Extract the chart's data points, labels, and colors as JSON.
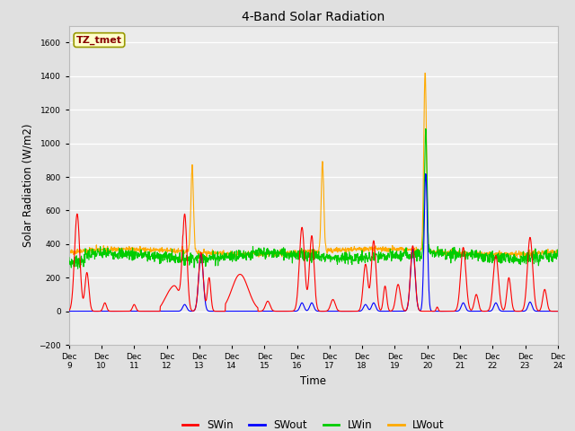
{
  "title": "4-Band Solar Radiation",
  "xlabel": "Time",
  "ylabel": "Solar Radiation (W/m2)",
  "ylim": [
    -200,
    1700
  ],
  "yticks": [
    -200,
    0,
    200,
    400,
    600,
    800,
    1000,
    1200,
    1400,
    1600
  ],
  "legend_label": "TZ_tmet",
  "legend_box_color": "#ffffcc",
  "legend_box_edge": "#999900",
  "series_colors": {
    "SWin": "#ff0000",
    "SWout": "#0000ff",
    "LWin": "#00cc00",
    "LWout": "#ffaa00"
  },
  "bg_color": "#e0e0e0",
  "plot_bg_color": "#ebebeb",
  "n_points": 1500,
  "x_start": 9,
  "x_end": 24,
  "xtick_positions": [
    9,
    10,
    11,
    12,
    13,
    14,
    15,
    16,
    17,
    18,
    19,
    20,
    21,
    22,
    23,
    24
  ],
  "xtick_labels": [
    "Dec 9",
    "Dec 10",
    "Dec 11",
    "Dec 12",
    "Dec 13",
    "Dec 14",
    "Dec 15",
    "Dec 16",
    "Dec 17",
    "Dec 18",
    "Dec 19",
    "Dec 20",
    "Dec 21",
    "Dec 22",
    "Dec 23",
    "Dec 24"
  ]
}
